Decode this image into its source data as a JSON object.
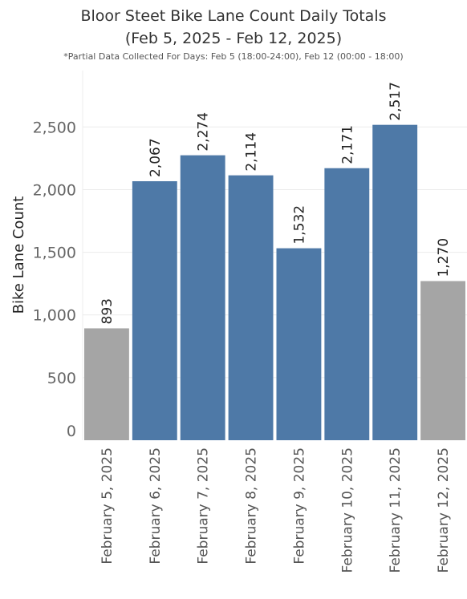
{
  "title_line1": "Bloor Steet Bike Lane Count Daily Totals",
  "title_line2": "(Feb 5, 2025 - Feb 12, 2025)",
  "subtitle": "*Partial Data Collected For Days: Feb 5 (18:00-24:00), Feb 12 (00:00 - 18:00)",
  "colors": {
    "full_day": "#4e79a7",
    "partial_day": "#a5a5a5",
    "grid": "#ececec"
  },
  "chart_data": {
    "type": "bar",
    "categories": [
      "February 5, 2025",
      "February 6, 2025",
      "February 7, 2025",
      "February 8, 2025",
      "February 9, 2025",
      "February 10, 2025",
      "February 11, 2025",
      "February 12, 2025"
    ],
    "values": [
      893,
      2067,
      2274,
      2114,
      1532,
      2171,
      2517,
      1270
    ],
    "value_labels": [
      "893",
      "2,067",
      "2,274",
      "2,114",
      "1,532",
      "2,171",
      "2,517",
      "1,270"
    ],
    "partial": [
      true,
      false,
      false,
      false,
      false,
      false,
      false,
      true
    ],
    "ylabel": "Bike Lane Count",
    "yticks": [
      0,
      500,
      1000,
      1500,
      2000,
      2500
    ],
    "ytick_labels": [
      "0",
      "500",
      "1,000",
      "1,500",
      "2,000",
      "2,500"
    ],
    "ylim": [
      0,
      2950
    ],
    "grid": true
  }
}
